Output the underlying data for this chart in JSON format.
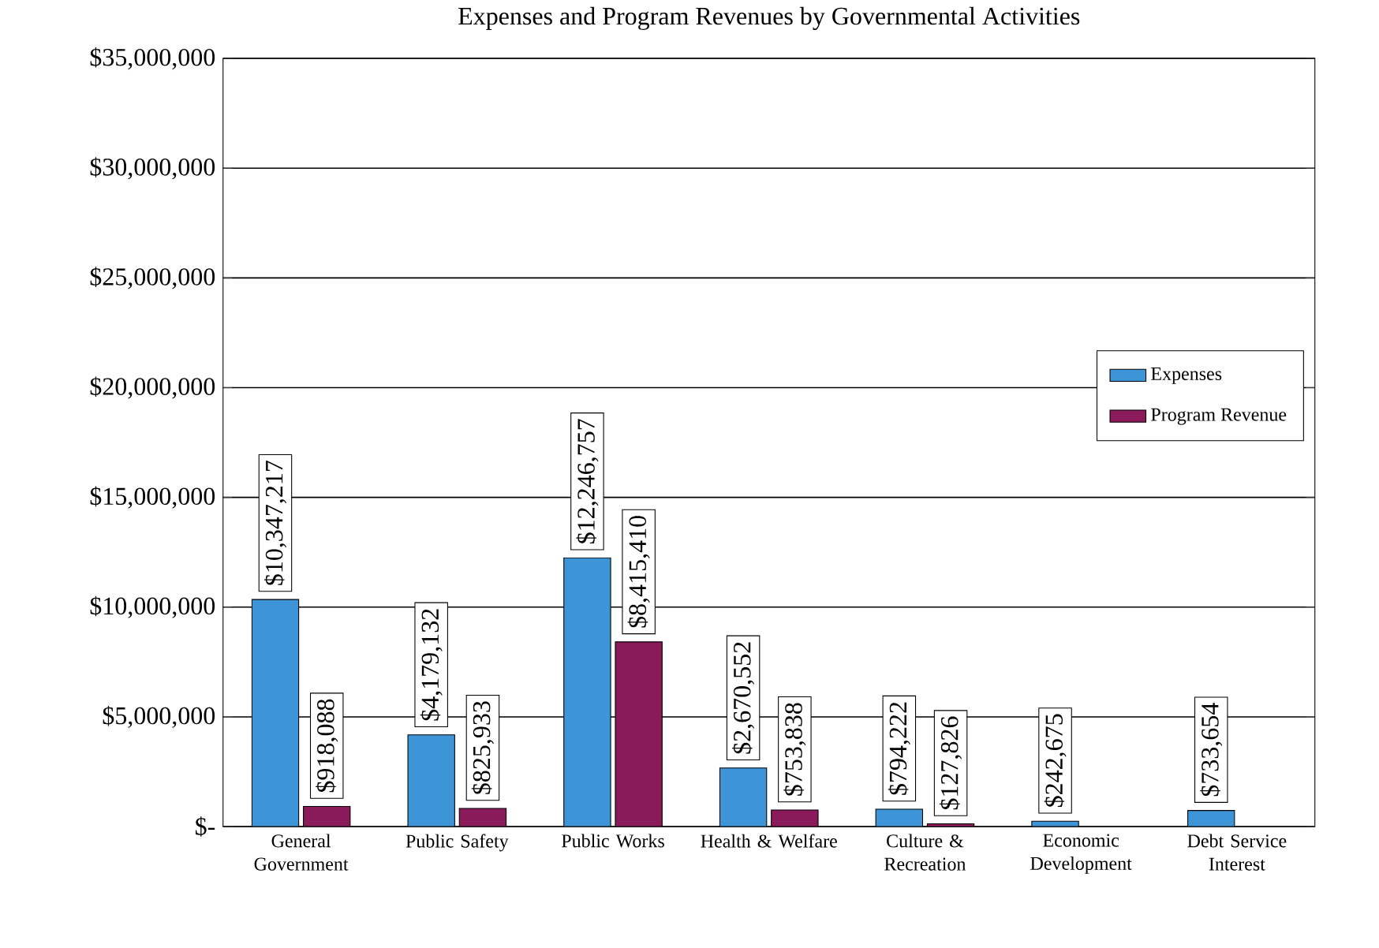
{
  "chart_data": {
    "type": "bar",
    "title": "Expenses and Program Revenues by Governmental Activities",
    "categories": [
      "General Government",
      "Public Safety",
      "Public Works",
      "Health & Welfare",
      "Culture & Recreation",
      "Economic Development",
      "Debt Service Interest"
    ],
    "series": [
      {
        "name": "Expenses",
        "color": "#3d95d8",
        "values": [
          10347217,
          4179132,
          12246757,
          2670552,
          794222,
          242675,
          733654
        ],
        "value_labels": [
          "$10,347,217",
          "$4,179,132",
          "$12,246,757",
          "$2,670,552",
          "$794,222",
          "$242,675",
          "$733,654"
        ]
      },
      {
        "name": "Program Revenue",
        "color": "#8b1a5a",
        "values": [
          918088,
          825933,
          8415410,
          753838,
          127826,
          null,
          null
        ],
        "value_labels": [
          "$918,088",
          "$825,933",
          "$8,415,410",
          "$753,838",
          "$127,826",
          null,
          null
        ]
      }
    ],
    "ylim": [
      0,
      35000000
    ],
    "yticks": [
      {
        "value": 0,
        "label": "$-"
      },
      {
        "value": 5000000,
        "label": "$5,000,000"
      },
      {
        "value": 10000000,
        "label": "$10,000,000"
      },
      {
        "value": 15000000,
        "label": "$15,000,000"
      },
      {
        "value": 20000000,
        "label": "$20,000,000"
      },
      {
        "value": 25000000,
        "label": "$25,000,000"
      },
      {
        "value": 30000000,
        "label": "$30,000,000"
      },
      {
        "value": 35000000,
        "label": "$35,000,000"
      }
    ],
    "grid": "y",
    "legend": "right"
  }
}
